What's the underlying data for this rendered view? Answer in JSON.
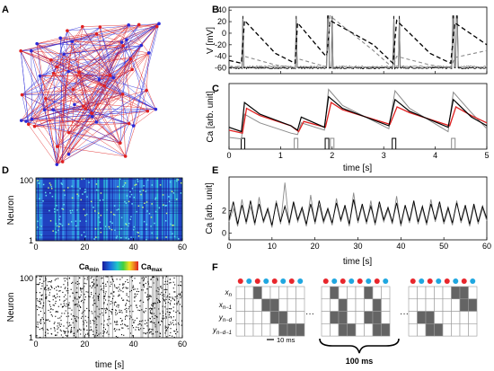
{
  "panels": {
    "A": {
      "label": "A"
    },
    "B": {
      "label": "B",
      "ylabel": "V [mV]",
      "yticks": [
        "40",
        "20",
        "0",
        "-20",
        "-40",
        "-60"
      ]
    },
    "C": {
      "label": "C",
      "ylabel": "Ca [arb. unit]",
      "xlabel": "time [s]",
      "xticks": [
        "0",
        "1",
        "2",
        "3",
        "4",
        "5"
      ]
    },
    "D": {
      "label": "D",
      "ylabel_top": "Neuron",
      "ylabel_bottom": "Neuron",
      "yticks": [
        "100",
        "1"
      ],
      "xticks": [
        "0",
        "20",
        "40",
        "60"
      ],
      "xlabel": "time [s]",
      "colorbar": {
        "min_label": "Ca",
        "min_sub": "min",
        "max_label": "Ca",
        "max_sub": "max"
      }
    },
    "E": {
      "label": "E",
      "ylabel": "Ca [arb. unit]",
      "xlabel": "time [s]",
      "yticks": [
        "2",
        "0"
      ],
      "xticks": [
        "0",
        "10",
        "20",
        "30",
        "40",
        "50",
        "60"
      ]
    },
    "F": {
      "label": "F",
      "row_labels": [
        {
          "base": "x",
          "sub": "n"
        },
        {
          "base": "x",
          "sub": "n−1"
        },
        {
          "base": "y",
          "sub": "n−d"
        },
        {
          "base": "y",
          "sub": "n−d−1"
        }
      ],
      "ellipsis": "···",
      "scale_label": "10 ms",
      "brace_label": "100 ms",
      "dot_colors": [
        "#e8262c",
        "#1fa7e0",
        "#e8262c",
        "#1fa7e0",
        "#e8262c",
        "#1fa7e0",
        "#e8262c",
        "#1fa7e0"
      ]
    }
  },
  "colors": {
    "red": "#e02020",
    "blue": "#2a2ad8",
    "gray": "#8a8a8a",
    "dark": "#111111",
    "filled_cell": "#646464"
  },
  "chart_data": [
    {
      "type": "line",
      "panel": "B",
      "xlim": [
        0,
        5
      ],
      "ylim": [
        -70,
        45
      ],
      "series": [
        {
          "style": "dashed-black",
          "x": [
            0.0,
            0.24,
            0.3,
            0.9,
            1.28,
            1.33,
            1.88,
            1.9,
            1.96,
            2.8,
            3.18,
            3.25,
            3.9,
            4.3,
            4.38,
            5.0
          ],
          "y": [
            -47,
            -52,
            22,
            -35,
            -52,
            18,
            -40,
            -35,
            22,
            -20,
            -52,
            22,
            -35,
            -52,
            18,
            -20
          ]
        },
        {
          "style": "dashed-gray",
          "x": [
            0.0,
            0.24,
            0.3,
            0.9,
            1.28,
            1.33,
            1.88,
            1.9,
            1.96,
            2.8,
            3.18,
            3.25,
            3.9,
            4.3,
            4.38,
            5.0
          ],
          "y": [
            -58,
            -60,
            -40,
            -55,
            -60,
            -44,
            -58,
            -40,
            30,
            -30,
            -60,
            -40,
            -55,
            -60,
            -42,
            -30
          ]
        }
      ]
    },
    {
      "type": "line",
      "panel": "C",
      "xlim": [
        0,
        5
      ],
      "ylim": [
        0,
        4.5
      ],
      "series": [
        {
          "style": "black",
          "x": [
            0.0,
            0.24,
            0.3,
            0.6,
            1.2,
            1.33,
            1.4,
            1.85,
            1.93,
            2.2,
            3.1,
            3.22,
            3.5,
            4.25,
            4.35,
            4.7,
            5.0
          ],
          "y": [
            1.5,
            1.2,
            3.2,
            2.4,
            1.6,
            1.3,
            2.2,
            1.5,
            3.6,
            2.8,
            1.6,
            3.4,
            2.6,
            1.5,
            3.4,
            2.2,
            1.6
          ]
        },
        {
          "style": "red",
          "x": [
            0.0,
            0.26,
            0.34,
            0.6,
            1.2,
            1.35,
            1.45,
            1.87,
            1.98,
            2.2,
            3.12,
            3.26,
            3.5,
            4.28,
            4.4,
            4.7,
            5.0
          ],
          "y": [
            1.3,
            1.1,
            2.8,
            2.3,
            1.6,
            1.2,
            1.9,
            1.5,
            3.2,
            2.7,
            1.7,
            2.9,
            2.5,
            1.6,
            2.9,
            2.3,
            1.8
          ]
        },
        {
          "style": "gray",
          "x": [
            0.0,
            0.24,
            0.3,
            0.6,
            1.2,
            1.33,
            1.4,
            1.85,
            1.93,
            2.2,
            3.1,
            3.22,
            3.5,
            4.25,
            4.35,
            4.7,
            5.0
          ],
          "y": [
            0.8,
            0.7,
            2.4,
            1.8,
            1.1,
            1.0,
            1.8,
            1.3,
            4.1,
            3.0,
            1.4,
            4.0,
            2.8,
            1.2,
            3.9,
            2.5,
            1.4
          ]
        }
      ]
    },
    {
      "type": "line",
      "panel": "E",
      "xlim": [
        0,
        60
      ],
      "ylim": [
        -0.6,
        5
      ],
      "series": [
        {
          "style": "black",
          "x": [
            0,
            1,
            2,
            3,
            4,
            5,
            6,
            7,
            8,
            9,
            10,
            11,
            12,
            13,
            14,
            15,
            16,
            17,
            18,
            19,
            20,
            21,
            22,
            23,
            24,
            25,
            26,
            27,
            28,
            29,
            30,
            31,
            32,
            33,
            34,
            35,
            36,
            37,
            38,
            39,
            40,
            41,
            42,
            43,
            44,
            45,
            46,
            47,
            48,
            49,
            50,
            51,
            52,
            53,
            54,
            55,
            56,
            57,
            58,
            59,
            60
          ],
          "y": [
            1.2,
            2.8,
            0.8,
            2.5,
            1.0,
            2.9,
            0.9,
            2.6,
            1.1,
            2.2,
            0.7,
            2.7,
            1.0,
            2.4,
            0.9,
            2.8,
            1.2,
            2.3,
            0.8,
            2.6,
            1.0,
            2.9,
            1.1,
            2.2,
            0.9,
            2.7,
            1.2,
            2.5,
            0.8,
            3.0,
            1.1,
            2.6,
            1.0,
            2.4,
            0.9,
            2.8,
            1.2,
            2.3,
            1.0,
            2.7,
            0.8,
            2.5,
            1.1,
            2.9,
            1.0,
            2.4,
            0.9,
            2.6,
            1.2,
            2.8,
            1.0,
            2.3,
            0.9,
            2.7,
            1.1,
            2.5,
            0.8,
            2.6,
            1.0,
            2.4,
            1.3
          ]
        },
        {
          "style": "gray",
          "x": [
            0,
            1,
            2,
            3,
            4,
            5,
            6,
            7,
            8,
            9,
            10,
            11,
            12,
            13,
            14,
            15,
            16,
            17,
            18,
            19,
            20,
            21,
            22,
            23,
            24,
            25,
            26,
            27,
            28,
            29,
            30,
            31,
            32,
            33,
            34,
            35,
            36,
            37,
            38,
            39,
            40,
            41,
            42,
            43,
            44,
            45,
            46,
            47,
            48,
            49,
            50,
            51,
            52,
            53,
            54,
            55,
            56,
            57,
            58,
            59,
            60
          ],
          "y": [
            1.0,
            2.2,
            0.6,
            3.0,
            0.8,
            2.4,
            0.7,
            3.2,
            0.9,
            2.0,
            0.5,
            2.9,
            0.8,
            4.5,
            0.7,
            2.6,
            1.0,
            2.1,
            0.6,
            3.4,
            0.8,
            2.5,
            0.9,
            2.0,
            0.7,
            3.1,
            1.0,
            2.3,
            0.6,
            3.6,
            0.9,
            2.4,
            0.8,
            2.9,
            0.7,
            2.5,
            1.0,
            2.1,
            0.8,
            3.3,
            0.6,
            2.4,
            0.9,
            2.7,
            0.8,
            2.2,
            0.7,
            3.0,
            1.0,
            2.5,
            0.8,
            2.1,
            0.7,
            2.9,
            0.9,
            2.3,
            0.6,
            2.4,
            0.8,
            2.2,
            1.1
          ]
        }
      ]
    }
  ]
}
